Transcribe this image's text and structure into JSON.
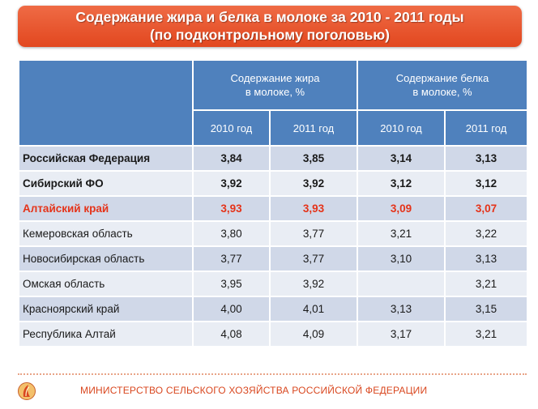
{
  "title": {
    "line1": "Содержание жира и белка в молоке за 2010 - 2011 годы",
    "line2": "(по подконтрольному поголовью)"
  },
  "table": {
    "group_headers": [
      {
        "line1": "Содержание жира",
        "line2": "в молоке, %"
      },
      {
        "line1": "Содержание белка",
        "line2": "в молоке, %"
      }
    ],
    "year_headers": [
      "2010 год",
      "2011 год",
      "2010 год",
      "2011 год"
    ],
    "rows": [
      {
        "region": "Российская Федерация",
        "fat_2010": "3,84",
        "fat_2011": "3,85",
        "protein_2010": "3,14",
        "protein_2011": "3,13"
      },
      {
        "region": "Сибирский ФО",
        "fat_2010": "3,92",
        "fat_2011": "3,92",
        "protein_2010": "3,12",
        "protein_2011": "3,12"
      },
      {
        "region": "Алтайский край",
        "fat_2010": "3,93",
        "fat_2011": "3,93",
        "protein_2010": "3,09",
        "protein_2011": "3,07"
      },
      {
        "region": "Кемеровская область",
        "fat_2010": "3,80",
        "fat_2011": "3,77",
        "protein_2010": "3,21",
        "protein_2011": "3,22"
      },
      {
        "region": "Новосибирская область",
        "fat_2010": "3,77",
        "fat_2011": "3,77",
        "protein_2010": "3,10",
        "protein_2011": "3,13"
      },
      {
        "region": "Омская область",
        "fat_2010": "3,95",
        "fat_2011": "3,92",
        "protein_2010": "",
        "protein_2011": "3,21"
      },
      {
        "region": "Красноярский край",
        "fat_2010": "4,00",
        "fat_2011": "4,01",
        "protein_2010": "3,13",
        "protein_2011": "3,15"
      },
      {
        "region": "Республика Алтай",
        "fat_2010": "4,08",
        "fat_2011": "4,09",
        "protein_2010": "3,17",
        "protein_2011": "3,21"
      }
    ]
  },
  "footer": {
    "text": "МИНИСТЕРСТВО СЕЛЬСКОГО ХОЗЯЙСТВА РОССИЙСКОЙ ФЕДЕРАЦИИ",
    "emblem_icon": "ministry-emblem-icon"
  },
  "colors": {
    "banner": "#e2471f",
    "header": "#4f81bd",
    "row_odd": "#d0d8e8",
    "row_even": "#e9edf4",
    "highlight_red": "#e53319"
  }
}
